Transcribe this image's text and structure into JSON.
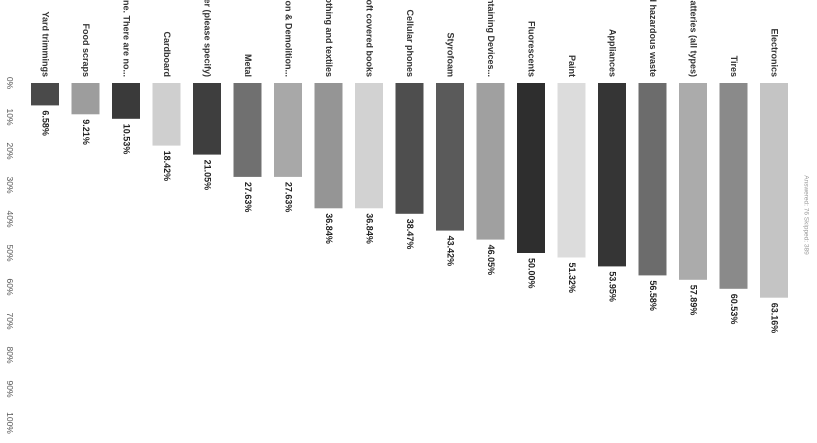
{
  "chart_data": {
    "type": "bar",
    "orientation": "vertical-downward",
    "categories": [
      "Yard trimmings",
      "Food scraps",
      "None. There are no...",
      "Cardboard",
      "Other (please specify)",
      "Metal",
      "Construction & Demolition...",
      "Used clothing and textiles",
      "Hard and soft covered books",
      "Cellular phones",
      "Styrofoam",
      "Mercury-Containing Devices...",
      "Fluorescents",
      "Paint",
      "Appliances",
      "Household hazardous waste",
      "Batteries (all types)",
      "Tires",
      "Electronics"
    ],
    "values": [
      6.58,
      9.21,
      10.53,
      18.42,
      21.05,
      27.63,
      27.63,
      36.84,
      36.84,
      38.47,
      43.42,
      46.05,
      50.0,
      51.32,
      53.95,
      56.58,
      57.89,
      60.53,
      63.16
    ],
    "value_labels": [
      "6.58%",
      "9.21%",
      "10.53%",
      "18.42%",
      "21.05%",
      "27.63%",
      "27.63%",
      "36.84%",
      "36.84%",
      "38.47%",
      "43.42%",
      "46.05%",
      "50.00%",
      "51.32%",
      "53.95%",
      "56.58%",
      "57.89%",
      "60.53%",
      "63.16%"
    ],
    "bar_colors": [
      "#4a4a4a",
      "#9d9d9d",
      "#3a3a3a",
      "#cfcfcf",
      "#3e3e3e",
      "#707070",
      "#a8a8a8",
      "#959595",
      "#d2d2d2",
      "#4e4e4e",
      "#5a5a5a",
      "#a0a0a0",
      "#2e2e2e",
      "#dcdcdc",
      "#353535",
      "#6c6c6c",
      "#ababab",
      "#8a8a8a",
      "#c4c4c4"
    ],
    "value_axis": {
      "range": [
        0,
        100
      ],
      "ticks": [
        "0%",
        "10%",
        "20%",
        "30%",
        "40%",
        "50%",
        "60%",
        "70%",
        "80%",
        "90%",
        "100%"
      ]
    },
    "footer": "Answered: 76   Skipped: 389",
    "grid": false,
    "legend": "none"
  }
}
